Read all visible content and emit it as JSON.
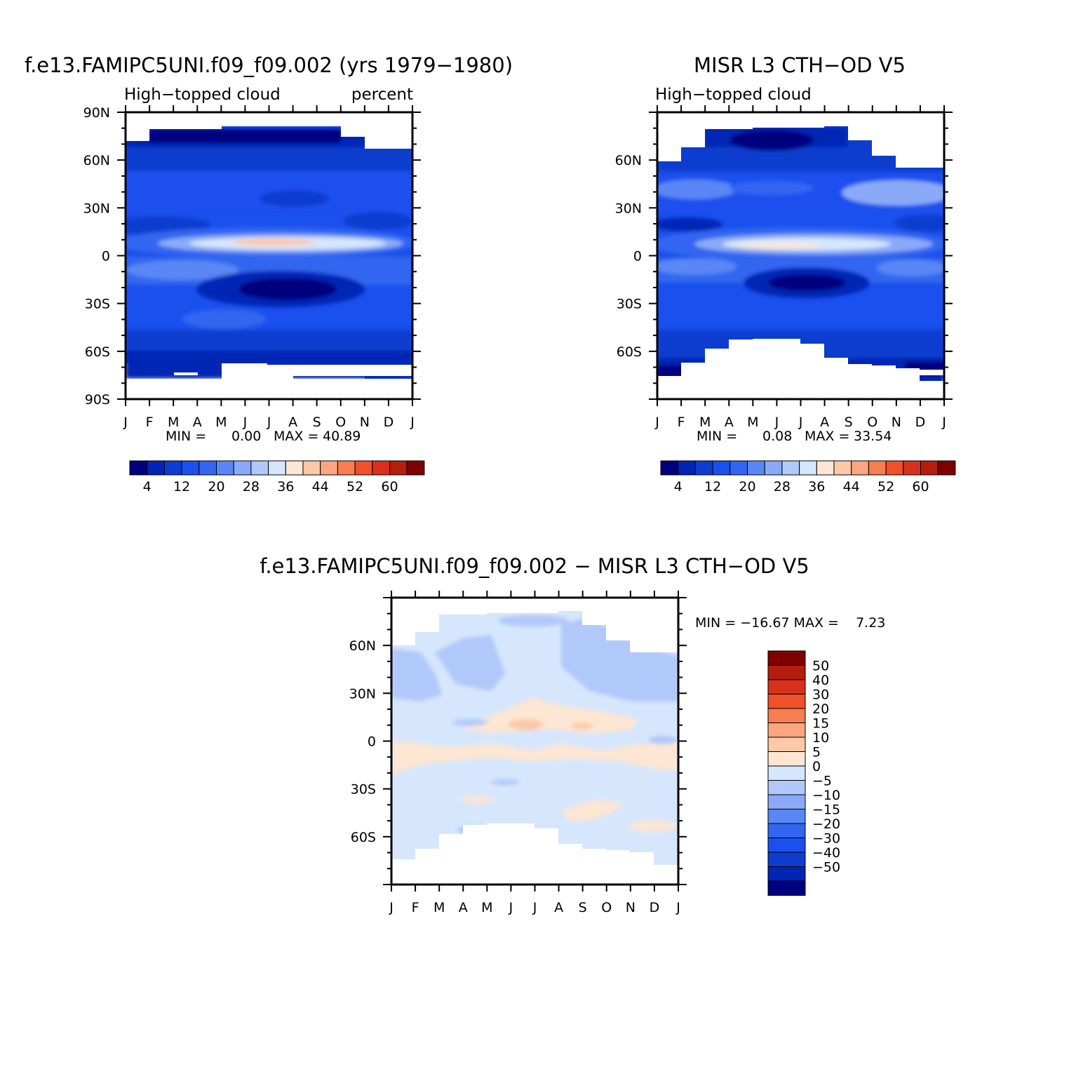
{
  "chart_data": [
    {
      "type": "heatmap",
      "title": "f.e13.FAMIPC5UNI.f09_f09.002 (yrs 1979−1980)",
      "subtitle_left": "High−topped cloud",
      "subtitle_right": "percent",
      "x_ticks": [
        "J",
        "F",
        "M",
        "A",
        "M",
        "J",
        "J",
        "A",
        "S",
        "O",
        "N",
        "D",
        "J"
      ],
      "y_ticks": [
        "90N",
        "60N",
        "30N",
        "0",
        "30S",
        "60S",
        "90S"
      ],
      "ylim": [
        -90,
        90
      ],
      "min_label": "MIN =",
      "min_value": "0.00",
      "max_label": "MAX =",
      "max_value": "40.89",
      "colorbar_labels": [
        "4",
        "12",
        "20",
        "28",
        "36",
        "44",
        "52",
        "60"
      ]
    },
    {
      "type": "heatmap",
      "title": "MISR L3 CTH−OD V5",
      "subtitle_left": "High−topped cloud",
      "x_ticks": [
        "J",
        "F",
        "M",
        "A",
        "M",
        "J",
        "J",
        "A",
        "S",
        "O",
        "N",
        "D",
        "J"
      ],
      "y_ticks": [
        "60N",
        "30N",
        "0",
        "30S",
        "60S"
      ],
      "ylim": [
        -90,
        90
      ],
      "min_label": "MIN =",
      "min_value": "0.08",
      "max_label": "MAX =",
      "max_value": "33.54",
      "colorbar_labels": [
        "4",
        "12",
        "20",
        "28",
        "36",
        "44",
        "52",
        "60"
      ]
    },
    {
      "type": "heatmap",
      "title": "f.e13.FAMIPC5UNI.f09_f09.002 − MISR L3 CTH−OD V5",
      "x_ticks": [
        "J",
        "F",
        "M",
        "A",
        "M",
        "J",
        "J",
        "A",
        "S",
        "O",
        "N",
        "D",
        "J"
      ],
      "y_ticks": [
        "60N",
        "30N",
        "0",
        "30S",
        "60S"
      ],
      "ylim": [
        -90,
        90
      ],
      "minmax_text": "MIN = −16.67 MAX =    7.23",
      "colorbar_labels": [
        "50",
        "40",
        "30",
        "20",
        "15",
        "10",
        "5",
        "0",
        "−5",
        "−10",
        "−15",
        "−20",
        "−30",
        "−40",
        "−50"
      ]
    }
  ],
  "colors": {
    "levels": [
      "#00007f",
      "#0025b5",
      "#0d3ccf",
      "#1a50ee",
      "#3266f0",
      "#5a87f5",
      "#8aaaf8",
      "#b1c8fa",
      "#d6e6fc",
      "#fde6d3",
      "#fcc9a8",
      "#fba680",
      "#f67e50",
      "#f0502a",
      "#d8311b",
      "#b41e0e",
      "#800000"
    ]
  }
}
